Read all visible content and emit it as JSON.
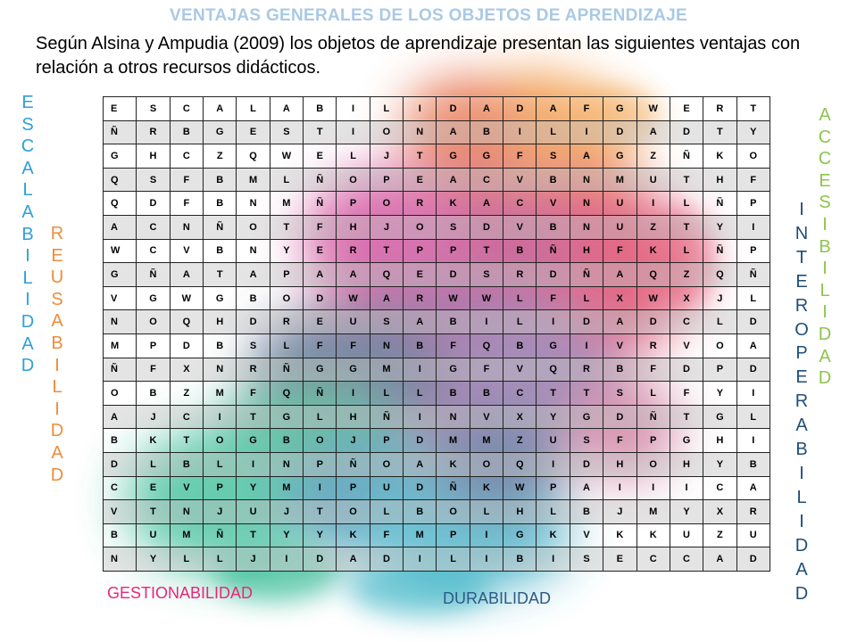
{
  "title": "VENTAJAS GENERALES DE LOS OBJETOS DE APRENDIZAJE",
  "intro": "Según Alsina y Ampudia (2009) los objetos de aprendizaje presentan las siguientes ventajas con relación a otros recursos didácticos.",
  "vertical_words": {
    "escalabilidad": "ESCALABILIDAD",
    "reusabilidad": "REUSABILIDAD",
    "accesibilidad": "ACCESIBILIDAD",
    "interoperabilidad": "INTEROPERABILIDAD"
  },
  "horizontal_words": {
    "gestionabilidad": "GESTIONABILIDAD",
    "durabilidad": "DURABILIDAD"
  },
  "colors": {
    "title": "#a9c9e6",
    "escalabilidad": "#2f9fd8",
    "reusabilidad": "#ee8c3a",
    "accesibilidad": "#8dc44e",
    "interoperabilidad": "#1f4e79",
    "gestionabilidad": "#e6287a",
    "durabilidad": "#2e5a86"
  },
  "word_search": [
    "E S C A L A B I L I D A D A F G W E R T",
    "Ñ R B G E S T I O N A B I L I D A D T Y",
    "G H C Z Q W E L J T G G F S A G Z Ñ K O",
    "Q S F B M L Ñ O P E A C V B N M U T H F",
    "Q D F B N M Ñ P O R K A C V N U I L Ñ P",
    "A C N Ñ O T F H J O S D V B N U Z T Y I",
    "W C V B N Y E R T P P T B Ñ H F K L Ñ P",
    "G Ñ A T A P A A Q E D S R D Ñ A Q Z Q Ñ",
    "V G W G B O D W A R W W L F L X W X J L",
    "N O Q H D R E U S A B I L I D A D C L D",
    "M P D B S L F F N B F Q B G I V R V O A",
    "Ñ F X N R Ñ G G M I G F V Q R B F D P D",
    "O B Z M F Q Ñ I L L B B C T T S L F Y I",
    "A J C I T G L H Ñ I N V X Y G D Ñ T G L",
    "B K T O G B O J P D M M Z U S F P G H I",
    "D L B L I N P Ñ O A K O Q I D H O H Y B",
    "C E V P Y M I P U D Ñ K W P A I I I C A",
    "V T N J U J T O L B O L H L B J M Y X R",
    "B U M Ñ T Y Y K F M P I G K V K K U Z U",
    "N Y L L J I D A D I L I B I S E C C A D"
  ]
}
